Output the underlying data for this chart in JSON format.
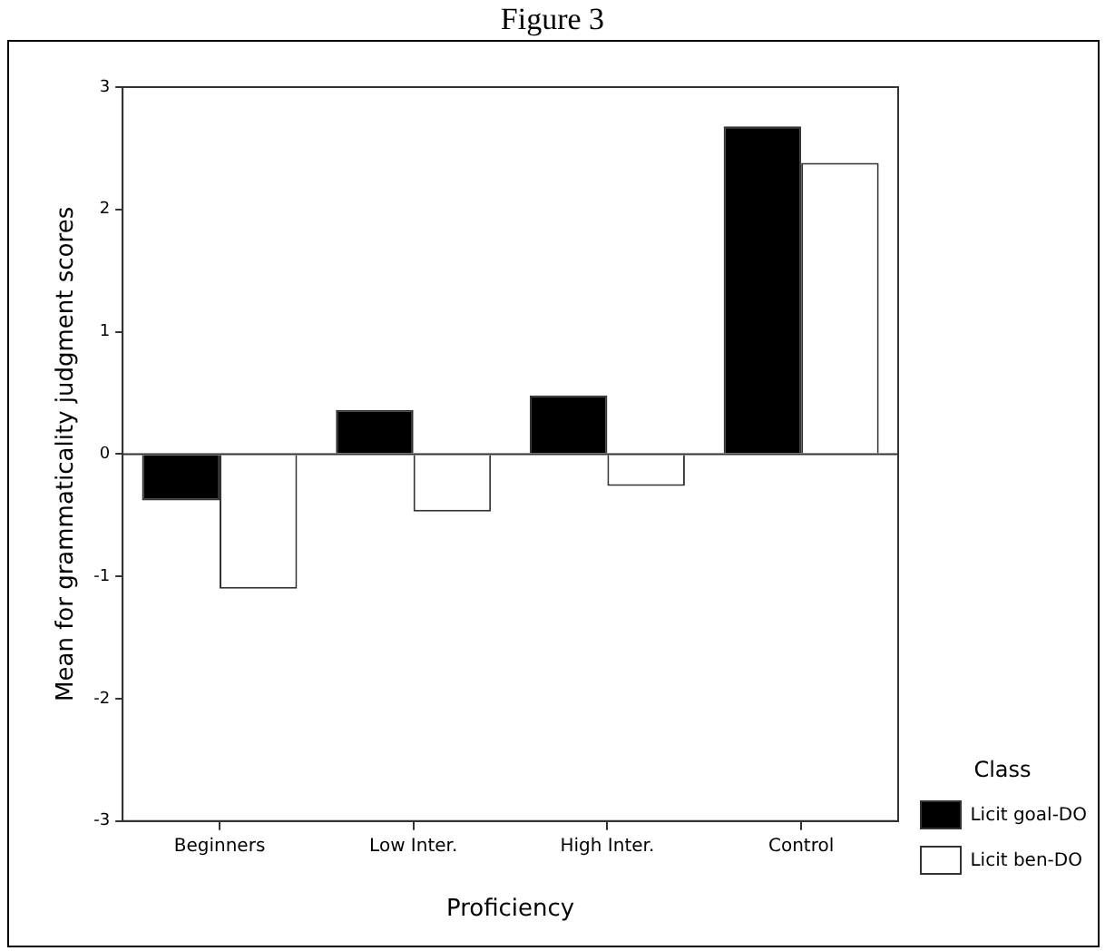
{
  "chart_data": {
    "type": "bar",
    "title": "Figure 3",
    "xlabel": "Proficiency",
    "ylabel": "Mean for grammaticality judgment scores",
    "legend_title": "Class",
    "legend": "bottom right",
    "categories": [
      "Beginners",
      "Low Inter.",
      "High Inter.",
      "Control"
    ],
    "series": [
      {
        "name": "Licit goal-DO",
        "color": "#000000",
        "values": [
          -0.38,
          0.36,
          0.48,
          2.68
        ]
      },
      {
        "name": "Licit ben-DO",
        "color": "#ffffff",
        "values": [
          -1.1,
          -0.47,
          -0.26,
          2.38
        ]
      }
    ],
    "ylim": [
      -3,
      3
    ],
    "yticks": [
      -3,
      -2,
      -1,
      0,
      1,
      2,
      3
    ],
    "ref_lines": [
      {
        "axis": "y",
        "value": 0,
        "color": "#333333"
      }
    ]
  }
}
